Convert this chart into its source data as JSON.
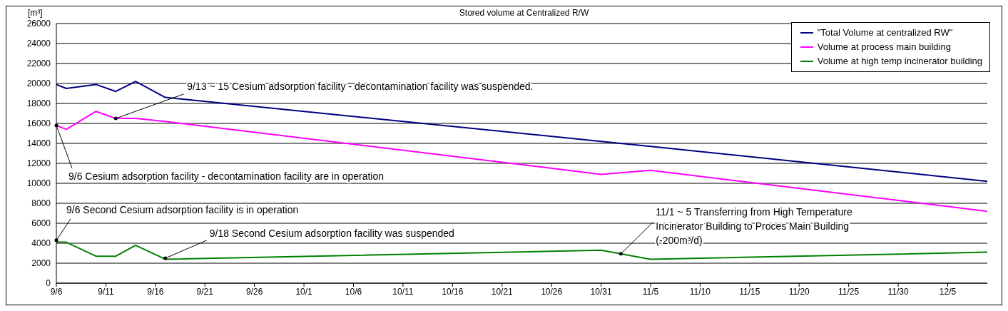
{
  "chart_data": {
    "type": "line",
    "title": "Stored volume at Centralized R/W",
    "ylabel": "[m³]",
    "x": [
      "--09-06",
      "--09-07",
      "--09-10",
      "--09-12",
      "--09-14",
      "--09-17",
      "--10-31",
      "--11-05",
      "--12-09"
    ],
    "series": [
      {
        "name": "\"Total Volume at centralized RW\"",
        "color": "#000080",
        "values": [
          19900,
          19500,
          19900,
          19200,
          20200,
          18600,
          14200,
          13700,
          10200
        ]
      },
      {
        "name": "Volume at process main building",
        "color": "#ff00ff",
        "values": [
          15800,
          15400,
          17200,
          16500,
          16500,
          16200,
          10900,
          11300,
          7200
        ]
      },
      {
        "name": "Volume at high temp incinerator building",
        "color": "#008000",
        "values": [
          4100,
          4100,
          2700,
          2700,
          3800,
          2400,
          3300,
          2400,
          3100
        ]
      }
    ],
    "xlim": [
      "--09-06",
      "--12-09"
    ],
    "xticks": [
      {
        "value": "--09-06",
        "label": "9/6"
      },
      {
        "value": "--09-11",
        "label": "9/11"
      },
      {
        "value": "--09-16",
        "label": "9/16"
      },
      {
        "value": "--09-21",
        "label": "9/21"
      },
      {
        "value": "--09-26",
        "label": "9/26"
      },
      {
        "value": "--10-01",
        "label": "10/1"
      },
      {
        "value": "--10-06",
        "label": "10/6"
      },
      {
        "value": "--10-11",
        "label": "10/11"
      },
      {
        "value": "--10-16",
        "label": "10/16"
      },
      {
        "value": "--10-21",
        "label": "10/21"
      },
      {
        "value": "--10-26",
        "label": "10/26"
      },
      {
        "value": "--10-31",
        "label": "10/31"
      },
      {
        "value": "--11-05",
        "label": "11/5"
      },
      {
        "value": "--11-10",
        "label": "11/10"
      },
      {
        "value": "--11-15",
        "label": "11/15"
      },
      {
        "value": "--11-20",
        "label": "11/20"
      },
      {
        "value": "--11-25",
        "label": "11/25"
      },
      {
        "value": "--11-30",
        "label": "11/30"
      },
      {
        "value": "--12-05",
        "label": "12/5"
      }
    ],
    "ylim": [
      0,
      26000
    ],
    "yticks": [
      0,
      2000,
      4000,
      6000,
      8000,
      10000,
      12000,
      14000,
      16000,
      18000,
      20000,
      22000,
      24000,
      26000
    ],
    "grid": "y",
    "legend": "top right",
    "marker": "none",
    "annotations": [
      {
        "text": "9/13 ~ 15  Cesium adsorption facility - decontamination facility was suspended.",
        "x": "--09-12",
        "y": 16500
      },
      {
        "text": "9/6  Cesium adsorption facility - decontamination facility are in operation",
        "x": "--09-06",
        "y": 15800
      },
      {
        "text": "9/6  Second Cesium adsorption facility is in operation",
        "x": "--09-06",
        "y": 4300
      },
      {
        "text": "9/18  Second Cesium adsorption facility was suspended",
        "x": "--09-17",
        "y": 2500
      },
      {
        "text": "11/1 ~ 5  Transferring from High Temperature Incinerator Building to Proces Main Building  (-200m³/d)",
        "x": "--11-02",
        "y": 2950
      }
    ]
  }
}
